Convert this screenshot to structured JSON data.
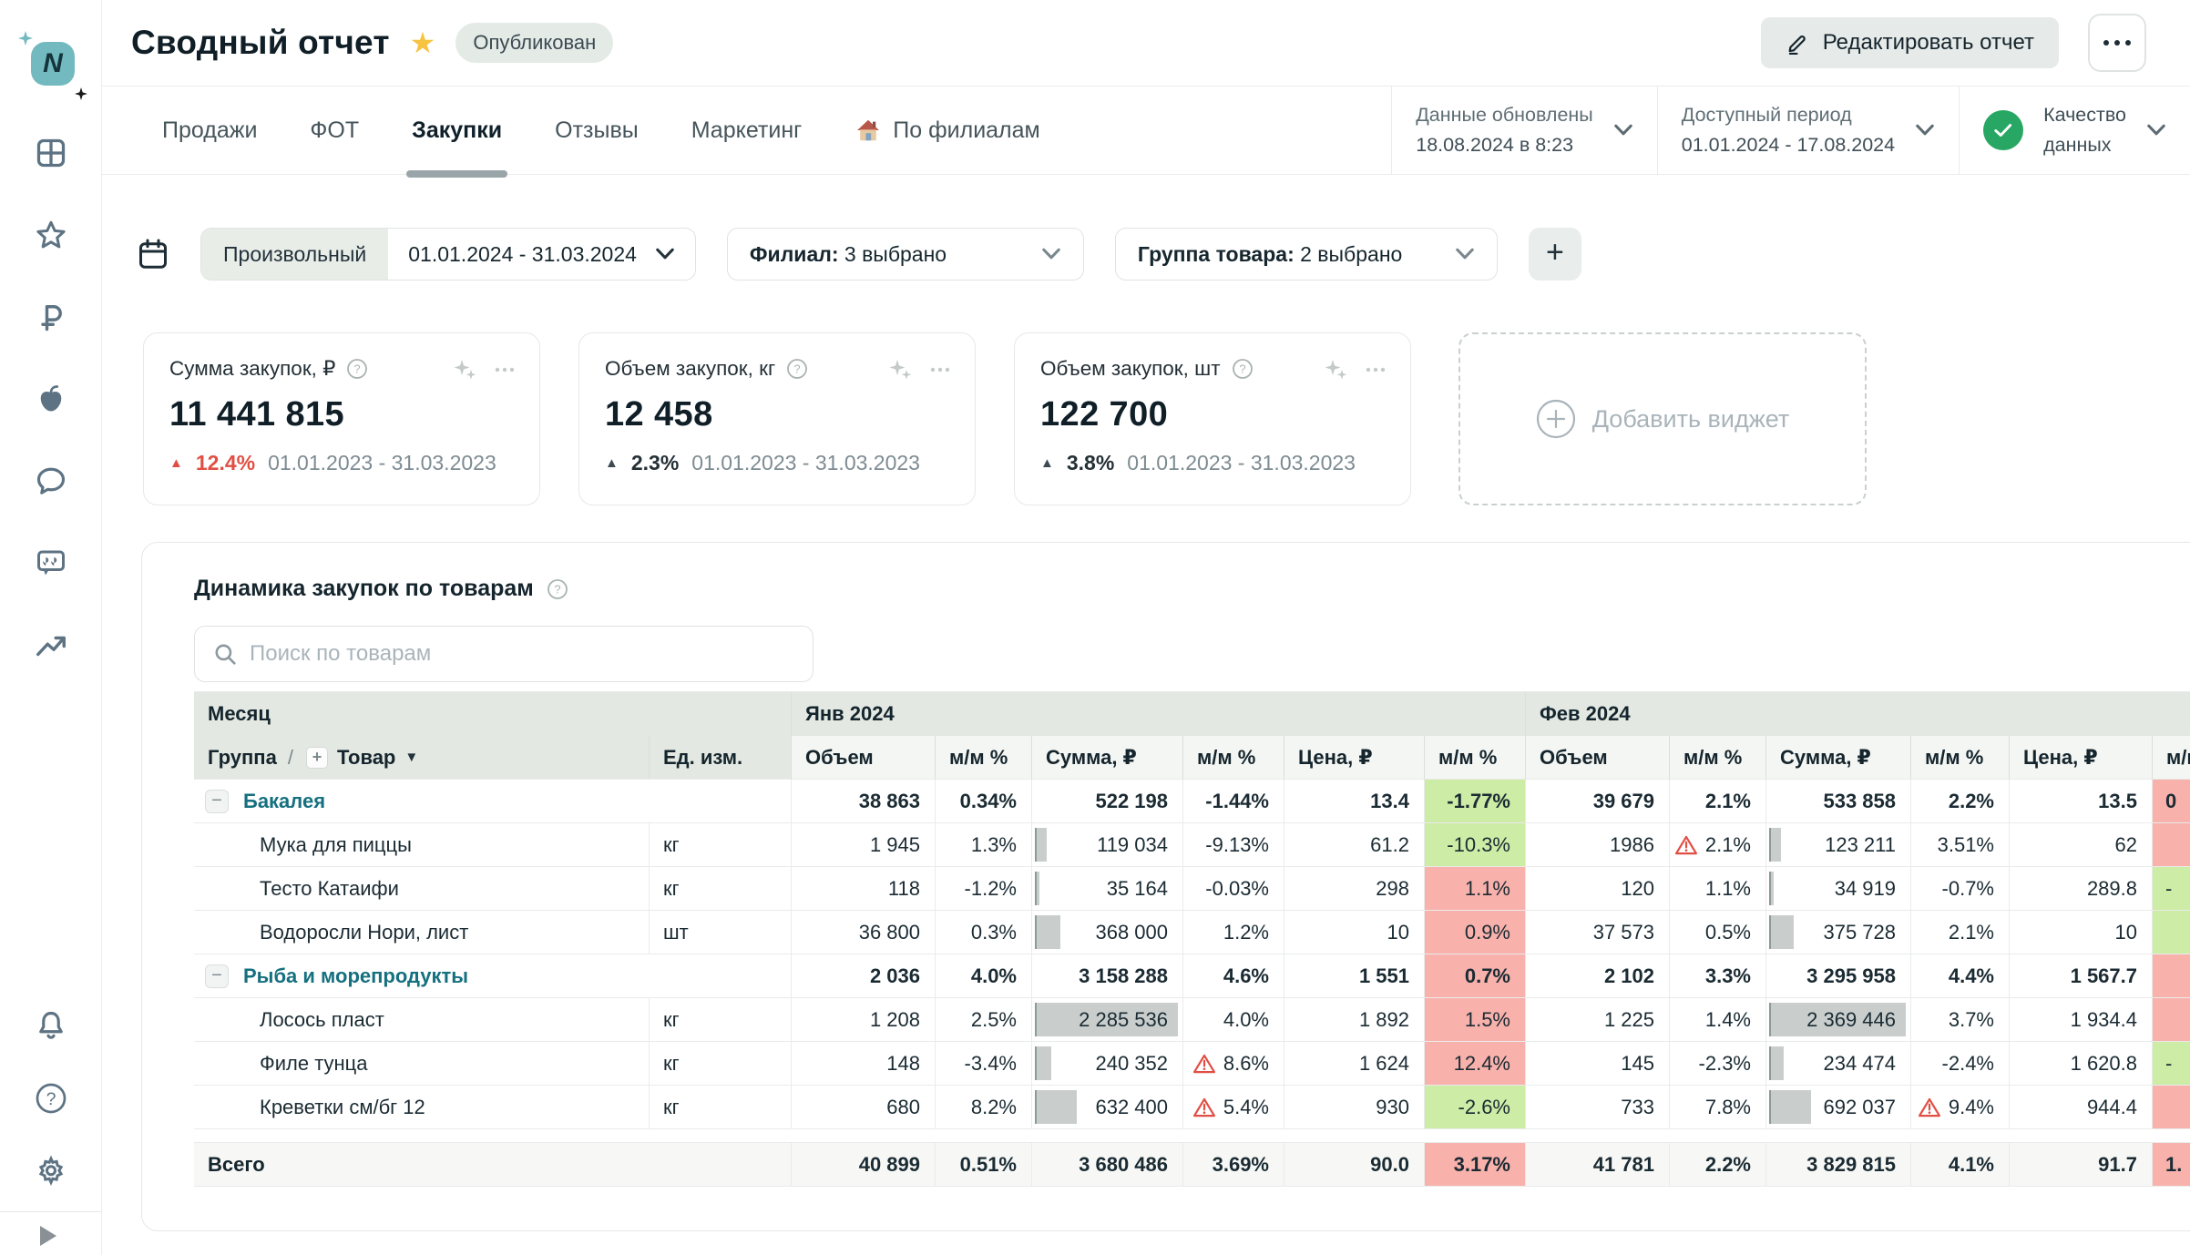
{
  "colors": {
    "brand_teal": "#72b9c0",
    "group_link": "#15707f",
    "positive_bg": "#cdeca6",
    "negative_bg": "#f9b1ac",
    "alert_red": "#e14f44",
    "quality_green": "#27a763",
    "star_yellow": "#f6c343"
  },
  "icons": [
    "dashboard-grid-icon",
    "star-icon",
    "ruble-icon",
    "apple-icon",
    "chat-icon",
    "reviews-quote-icon",
    "trend-icon",
    "bell-icon",
    "help-icon",
    "gear-icon",
    "expand-play-icon",
    "calendar-icon",
    "search-icon",
    "chevron-down-icon",
    "pencil-icon",
    "ellipsis-icon",
    "sparkles-ai-icon",
    "warning-triangle-icon",
    "check-circle-icon",
    "house-icon",
    "plus-icon"
  ],
  "header": {
    "title": "Сводный отчет",
    "badge": "Опубликован",
    "edit_button": "Редактировать отчет"
  },
  "tabs": {
    "t0": "Продажи",
    "t1": "ФОТ",
    "t2": "Закупки",
    "t3": "Отзывы",
    "t4": "Маркетинг",
    "t5": "По филиалам",
    "active": "Закупки"
  },
  "status": {
    "updated_label": "Данные обновлены",
    "updated_value": "18.08.2024 в 8:23",
    "period_label": "Доступный период",
    "period_value": "01.01.2024 - 17.08.2024",
    "quality_label_1": "Качество",
    "quality_label_2": "данных"
  },
  "filters": {
    "preset": "Произвольный",
    "range": "01.01.2024 - 31.03.2024",
    "branch_label": "Филиал:",
    "branch_value": "3 выбрано",
    "group_label": "Группа товара:",
    "group_value": "2 выбрано",
    "add": "+"
  },
  "cards": [
    {
      "title": "Сумма закупок, ₽",
      "value": "11 441 815",
      "delta": "12.4%",
      "period": "01.01.2023 - 31.03.2023"
    },
    {
      "title": "Объем закупок, кг",
      "value": "12 458",
      "delta": "2.3%",
      "period": "01.01.2023 - 31.03.2023"
    },
    {
      "title": "Объем закупок, шт",
      "value": "122 700",
      "delta": "3.8%",
      "period": "01.01.2023 - 31.03.2023"
    }
  ],
  "add_widget": "Добавить виджет",
  "table": {
    "title": "Динамика закупок по товарам",
    "search_placeholder": "Поиск по товарам",
    "col_month": "Месяц",
    "col_group": "Группа",
    "col_item": "Товар",
    "col_unit": "Ед. изм.",
    "month_1": "Янв 2024",
    "month_2": "Фев 2024",
    "sub": {
      "volume": "Объем",
      "mm": "м/м %",
      "sum": "Сумма, ₽",
      "price": "Цена, ₽"
    },
    "rows": [
      {
        "type": "group",
        "name": "Бакалея",
        "unit": "",
        "jan": [
          "38 863",
          "0.34%",
          "522 198",
          "-1.44%",
          "13.4",
          "-1.77%"
        ],
        "feb": [
          "39 679",
          "2.1%",
          "533 858",
          "2.2%",
          "13.5",
          "0"
        ]
      },
      {
        "type": "item",
        "name": "Мука для пиццы",
        "unit": "кг",
        "bar_jan": 8,
        "bar_feb": 8,
        "jan": [
          "1 945",
          "1.3%",
          "119 034",
          "-9.13%",
          "61.2",
          "-10.3%"
        ],
        "feb": [
          "1986",
          "2.1%",
          "123 211",
          "3.51%",
          "62",
          ""
        ]
      },
      {
        "type": "item",
        "name": "Тесто Катаифи",
        "unit": "кг",
        "bar_jan": 3,
        "bar_feb": 3,
        "jan": [
          "118",
          "-1.2%",
          "35 164",
          "-0.03%",
          "298",
          "1.1%"
        ],
        "feb": [
          "120",
          "1.1%",
          "34 919",
          "-0.7%",
          "289.8",
          "-"
        ]
      },
      {
        "type": "item",
        "name": "Водоросли Нори, лист",
        "unit": "шт",
        "bar_jan": 17,
        "bar_feb": 17,
        "jan": [
          "36 800",
          "0.3%",
          "368 000",
          "1.2%",
          "10",
          "0.9%"
        ],
        "feb": [
          "37 573",
          "0.5%",
          "375 728",
          "2.1%",
          "10",
          ""
        ]
      },
      {
        "type": "group",
        "name": "Рыба и морепродукты",
        "unit": "",
        "jan": [
          "2 036",
          "4.0%",
          "3 158 288",
          "4.6%",
          "1 551",
          "0.7%"
        ],
        "feb": [
          "2 102",
          "3.3%",
          "3 295 958",
          "4.4%",
          "1 567.7",
          ""
        ]
      },
      {
        "type": "item",
        "name": "Лосось пласт",
        "unit": "кг",
        "bar_jan": 95,
        "bar_feb": 95,
        "jan": [
          "1 208",
          "2.5%",
          "2 285 536",
          "4.0%",
          "1 892",
          "1.5%"
        ],
        "feb": [
          "1 225",
          "1.4%",
          "2 369 446",
          "3.7%",
          "1 934.4",
          ""
        ]
      },
      {
        "type": "item",
        "name": "Филе тунца",
        "unit": "кг",
        "bar_jan": 11,
        "bar_feb": 10,
        "jan": [
          "148",
          "-3.4%",
          "240 352",
          "8.6%",
          "1 624",
          "12.4%"
        ],
        "feb": [
          "145",
          "-2.3%",
          "234 474",
          "-2.4%",
          "1 620.8",
          "-"
        ]
      },
      {
        "type": "item",
        "name": "Креветки см/бг 12",
        "unit": "кг",
        "bar_jan": 28,
        "bar_feb": 29,
        "jan": [
          "680",
          "8.2%",
          "632 400",
          "5.4%",
          "930",
          "-2.6%"
        ],
        "feb": [
          "733",
          "7.8%",
          "692 037",
          "9.4%",
          "944.4",
          ""
        ]
      }
    ],
    "total": {
      "name": "Всего",
      "jan": [
        "40 899",
        "0.51%",
        "3 680 486",
        "3.69%",
        "90.0",
        "3.17%"
      ],
      "feb": [
        "41 781",
        "2.2%",
        "3 829 815",
        "4.1%",
        "91.7",
        "1."
      ]
    }
  }
}
